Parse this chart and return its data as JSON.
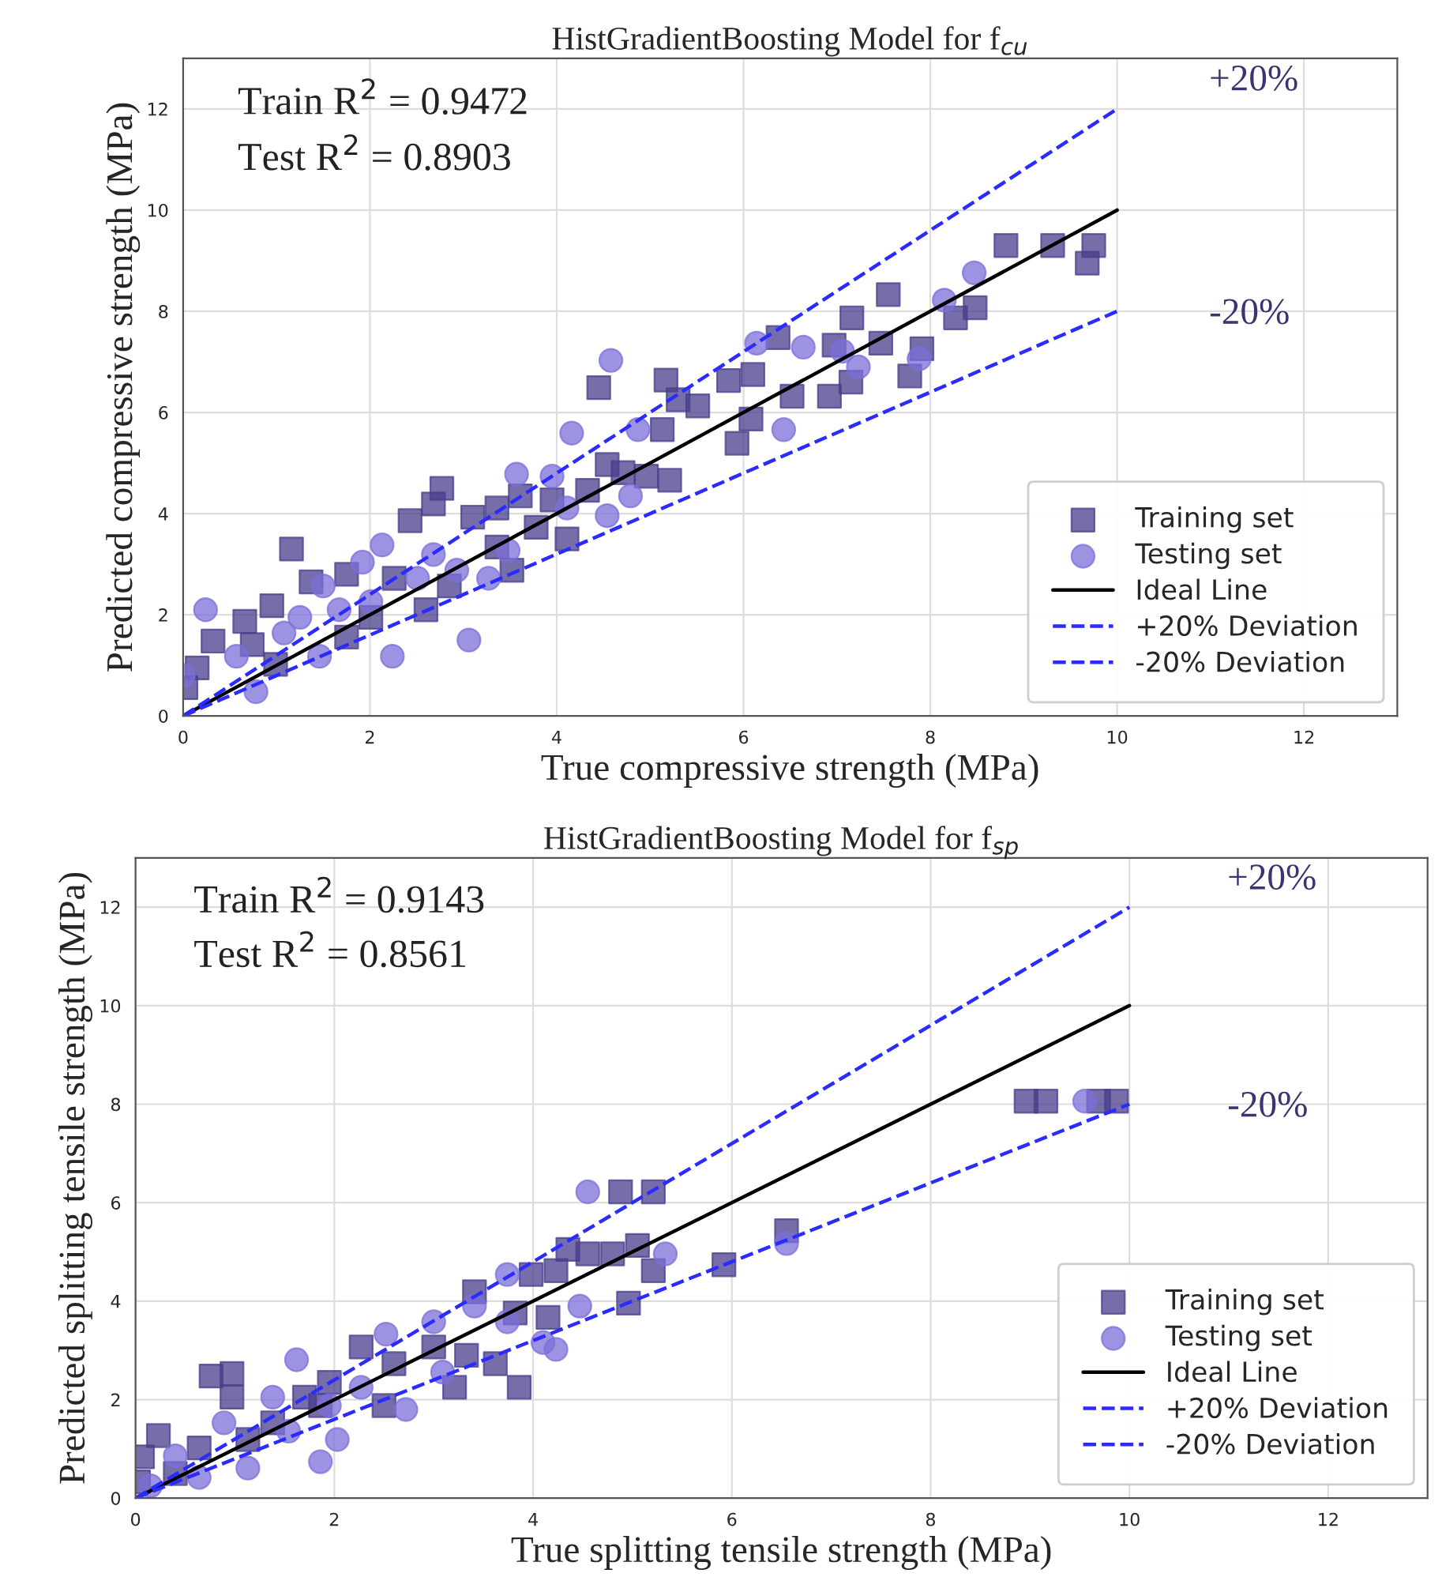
{
  "chart_data": [
    {
      "type": "scatter",
      "title": "HistGradientBoosting Model for f$_{cu}$",
      "xlabel": "True compressive strength (MPa)",
      "ylabel": "Predicted compressive strength (MPa)",
      "xlim": [
        0,
        13
      ],
      "ylim": [
        0,
        13
      ],
      "xticks": [
        0,
        2,
        4,
        6,
        8,
        10,
        12
      ],
      "yticks": [
        0,
        2,
        4,
        6,
        8,
        10,
        12
      ],
      "grid": true,
      "legend": "bottom right",
      "annotations": [
        "Train R$^{2}$ = 0.9472",
        "Test R$^{2}$ = 0.8903",
        "+20%",
        "-20%"
      ],
      "series": [
        {
          "name": "Training set",
          "marker": "square",
          "color": "#483d8b",
          "x": [
            8.81,
            9.31,
            9.75,
            9.68,
            7.55,
            7.16,
            8.27,
            8.48,
            6.37,
            6.97,
            7.47,
            7.91,
            7.15,
            6.92,
            6.52,
            6.1,
            5.84,
            6.08,
            5.93,
            7.78,
            5.17,
            4.45,
            5.3,
            5.51,
            5.13,
            5.21,
            4.96,
            4.54,
            4.71,
            4.33,
            3.95,
            3.61,
            3.36,
            2.77,
            2.68,
            2.43,
            3.1,
            4.11,
            3.52,
            2.6,
            2.85,
            2.26,
            1.75,
            1.37,
            1.16,
            0.95,
            1.75,
            0.66,
            0.32,
            0.74,
            0.15,
            0.03,
            0.99,
            2.01,
            3.36,
            3.78
          ],
          "values": [
            9.3,
            9.3,
            9.3,
            8.95,
            8.33,
            7.87,
            7.87,
            8.07,
            7.48,
            7.33,
            7.37,
            7.26,
            6.6,
            6.32,
            6.32,
            6.75,
            6.63,
            5.87,
            5.39,
            6.72,
            6.64,
            6.49,
            6.25,
            6.13,
            5.66,
            4.66,
            4.74,
            4.97,
            4.81,
            4.46,
            4.27,
            4.35,
            4.11,
            4.5,
            4.19,
            3.86,
            3.93,
            3.5,
            2.88,
            2.1,
            2.57,
            2.72,
            2.8,
            2.65,
            3.3,
            2.18,
            1.56,
            1.87,
            1.48,
            1.41,
            0.95,
            0.56,
            1.02,
            1.95,
            3.34,
            3.73
          ]
        },
        {
          "name": "Testing set",
          "marker": "circle",
          "color": "#7b6fd8",
          "x": [
            8.47,
            8.15,
            7.88,
            6.14,
            4.58,
            6.64,
            7.06,
            7.23,
            6.43,
            4.16,
            4.87,
            3.57,
            4.79,
            4.11,
            4.54,
            3.48,
            3.06,
            2.24,
            1.46,
            0.78,
            0.24,
            0.0,
            2.13,
            1.92,
            1.5,
            2.51,
            2.93,
            3.27,
            2.68,
            1.67,
            1.25,
            0.57,
            3.95,
            2.01,
            1.08
          ],
          "values": [
            8.76,
            8.22,
            7.06,
            7.37,
            7.03,
            7.29,
            7.21,
            6.9,
            5.66,
            5.59,
            5.66,
            4.78,
            4.35,
            4.11,
            3.96,
            3.27,
            1.5,
            1.18,
            1.18,
            0.48,
            2.1,
            0.8,
            3.38,
            3.04,
            2.57,
            2.72,
            2.88,
            2.72,
            3.19,
            2.1,
            1.95,
            1.18,
            4.74,
            2.26,
            1.64
          ]
        },
        {
          "name": "Ideal Line",
          "type": "line",
          "line_style": "solid",
          "color": "#000000",
          "x": [
            0,
            10
          ],
          "values": [
            0,
            10
          ]
        },
        {
          "name": "+20% Deviation",
          "type": "line",
          "line_style": "dashed",
          "color": "#2b2bff",
          "x": [
            0,
            10
          ],
          "values": [
            0,
            12
          ]
        },
        {
          "name": "-20% Deviation",
          "type": "line",
          "line_style": "dashed",
          "color": "#2b2bff",
          "x": [
            0,
            10
          ],
          "values": [
            0,
            8
          ]
        }
      ]
    },
    {
      "type": "scatter",
      "title": "HistGradientBoosting Model for f$_{sp}$",
      "xlabel": "True splitting tensile strength (MPa)",
      "ylabel": "Predicted splitting tensile strength (MPa)",
      "xlim": [
        0,
        13
      ],
      "ylim": [
        0,
        13
      ],
      "xticks": [
        0,
        2,
        4,
        6,
        8,
        10,
        12
      ],
      "yticks": [
        0,
        2,
        4,
        6,
        8,
        10,
        12
      ],
      "grid": true,
      "legend": "bottom right",
      "annotations": [
        "Train R$^{2}$ = 0.9143",
        "Test R$^{2}$ = 0.8561",
        "+20%",
        "-20%"
      ],
      "series": [
        {
          "name": "Training set",
          "marker": "square",
          "color": "#483d8b",
          "x": [
            8.96,
            9.16,
            9.87,
            9.69,
            5.21,
            4.88,
            6.55,
            5.92,
            4.96,
            4.35,
            4.8,
            5.05,
            5.21,
            3.98,
            4.15,
            3.82,
            3.41,
            3.62,
            3.86,
            3.21,
            3.0,
            2.6,
            2.27,
            1.95,
            1.7,
            0.97,
            0.76,
            0.97,
            1.38,
            0.64,
            0.23,
            0.07,
            0.4,
            0.03,
            1.13,
            1.86,
            2.5,
            3.33,
            4.23,
            4.55
          ],
          "values": [
            8.06,
            8.06,
            8.06,
            8.06,
            6.22,
            6.22,
            5.43,
            4.74,
            3.96,
            5.05,
            4.96,
            5.13,
            4.62,
            4.54,
            3.67,
            3.76,
            4.19,
            2.73,
            2.25,
            2.25,
            3.07,
            2.73,
            3.07,
            2.35,
            2.05,
            2.53,
            2.48,
            2.05,
            1.53,
            1.02,
            1.27,
            0.84,
            0.5,
            0.33,
            1.19,
            1.88,
            1.88,
            2.9,
            4.62,
            4.96
          ]
        },
        {
          "name": "Testing set",
          "marker": "circle",
          "color": "#7b6fd8",
          "x": [
            9.55,
            4.55,
            6.55,
            5.33,
            4.23,
            4.1,
            4.47,
            3.41,
            3.74,
            3.0,
            2.52,
            1.62,
            2.72,
            1.86,
            1.13,
            0.4,
            0.64,
            0.15,
            2.27,
            1.95,
            1.38,
            0.89,
            3.09,
            2.03,
            3.74,
            1.54
          ],
          "values": [
            8.06,
            6.22,
            5.17,
            4.96,
            3.02,
            3.16,
            3.9,
            3.9,
            4.54,
            3.58,
            3.33,
            2.81,
            1.8,
            0.74,
            0.61,
            0.86,
            0.42,
            0.25,
            2.25,
            1.88,
            2.05,
            1.53,
            2.56,
            1.19,
            3.58,
            1.36
          ]
        },
        {
          "name": "Ideal Line",
          "type": "line",
          "line_style": "solid",
          "color": "#000000",
          "x": [
            0,
            10
          ],
          "values": [
            0,
            10
          ]
        },
        {
          "name": "+20% Deviation",
          "type": "line",
          "line_style": "dashed",
          "color": "#2b2bff",
          "x": [
            0,
            10
          ],
          "values": [
            0,
            12
          ]
        },
        {
          "name": "-20% Deviation",
          "type": "line",
          "line_style": "dashed",
          "color": "#2b2bff",
          "x": [
            0,
            10
          ],
          "values": [
            0,
            8
          ]
        }
      ]
    }
  ]
}
